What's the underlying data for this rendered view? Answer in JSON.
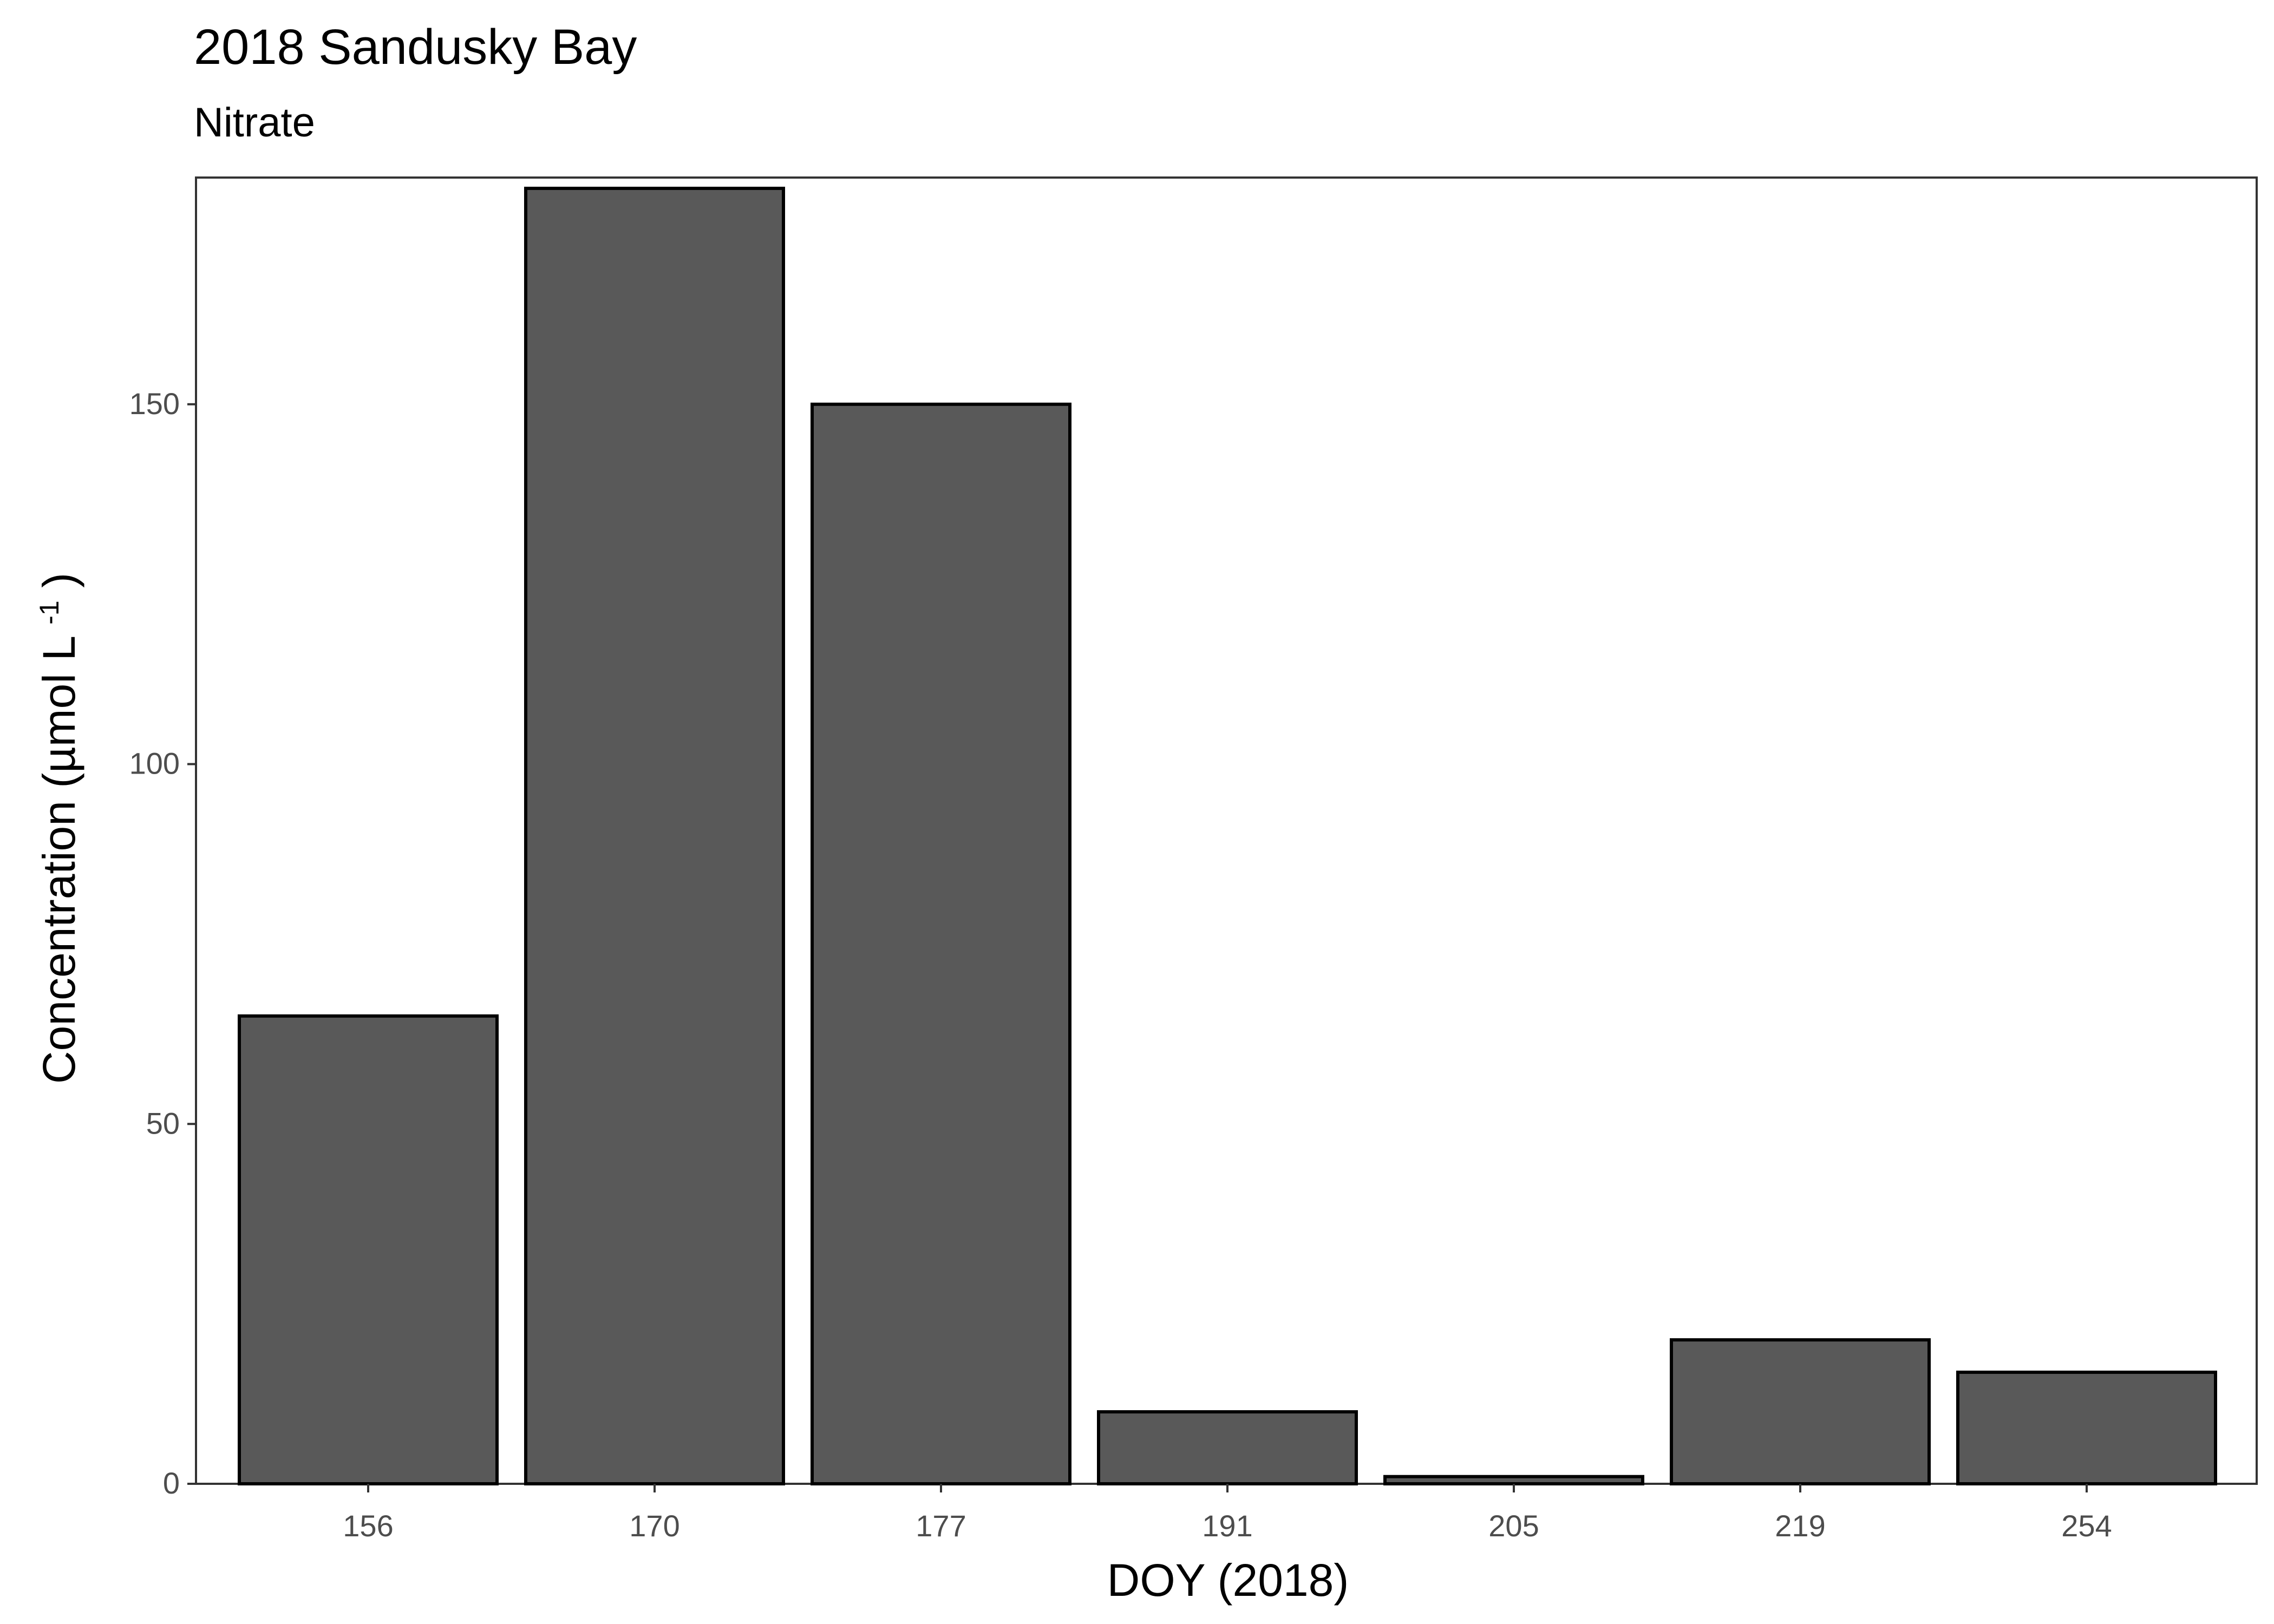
{
  "chart_data": {
    "type": "bar",
    "title": "2018 Sandusky Bay",
    "subtitle": "Nitrate",
    "xlabel": "DOY (2018)",
    "ylabel": "Concentration (µmol L-1)",
    "ylabel_main": "Concentration (µmol L",
    "ylabel_superscript": "-1",
    "ylabel_close": ")",
    "categories": [
      "156",
      "170",
      "177",
      "191",
      "205",
      "219",
      "254"
    ],
    "values": [
      65,
      180,
      150,
      10,
      1,
      20,
      15.5
    ],
    "y_ticks": [
      0,
      50,
      100,
      150
    ],
    "y_tick_labels": [
      "0",
      "50",
      "100",
      "150"
    ],
    "ylim": [
      0,
      181.5
    ],
    "grid": false,
    "legend": "none",
    "bar_fill": "#595959",
    "bar_stroke": "#000000",
    "panel_border": "#333333"
  }
}
